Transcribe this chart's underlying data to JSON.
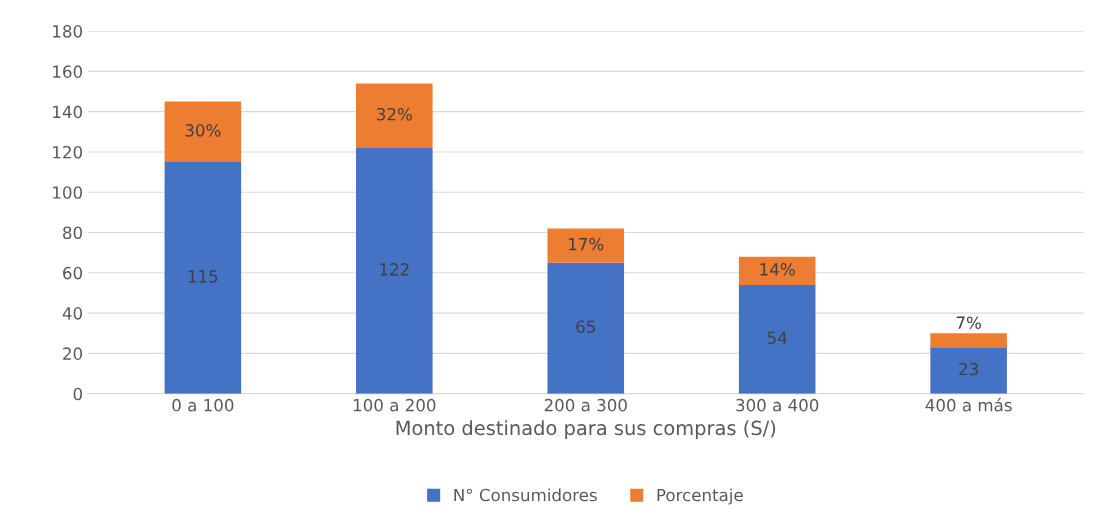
{
  "chart_data": {
    "type": "bar",
    "stacked": true,
    "xlabel": "Monto destinado para sus compras (S/)",
    "categories": [
      "0 a 100",
      "100 a 200",
      "200 a 300",
      "300 a 400",
      "400 a más"
    ],
    "series": [
      {
        "name": "N° Consumidores",
        "color": "#4472c4",
        "values": [
          115,
          122,
          65,
          54,
          23
        ],
        "value_labels": [
          "115",
          "122",
          "65",
          "54",
          "23"
        ]
      },
      {
        "name": "Porcentaje",
        "color": "#ed7d31",
        "values": [
          30,
          32,
          17,
          14,
          7
        ],
        "value_labels": [
          "30%",
          "32%",
          "17%",
          "14%",
          "7%"
        ]
      }
    ],
    "ylim": [
      0,
      180
    ],
    "yticks": [
      0,
      20,
      40,
      60,
      80,
      100,
      120,
      140,
      160,
      180
    ],
    "grid": "y",
    "legend": "bottom"
  }
}
